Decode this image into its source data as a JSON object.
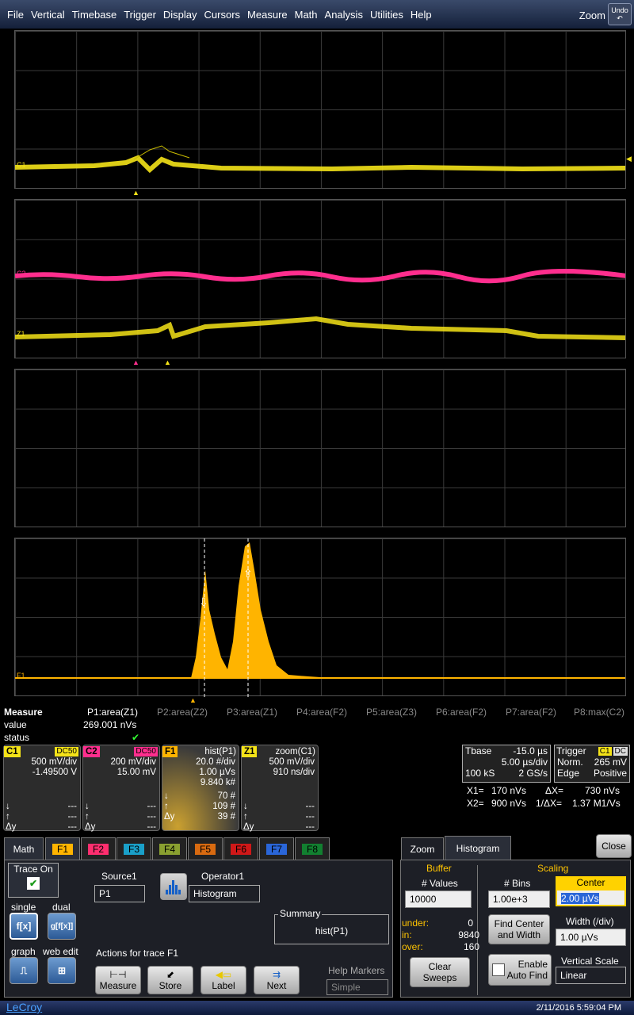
{
  "menu": {
    "items": [
      "File",
      "Vertical",
      "Timebase",
      "Trigger",
      "Display",
      "Cursors",
      "Measure",
      "Math",
      "Analysis",
      "Utilities",
      "Help"
    ],
    "zoom": "Zoom",
    "undo": "Undo"
  },
  "grid": {
    "c1": "C1",
    "c2": "C2",
    "z1": "Z1",
    "f1": "F1"
  },
  "measure": {
    "title": "Measure",
    "value_label": "value",
    "status_label": "status",
    "status_check": "✔",
    "params": [
      "P1:area(Z1)",
      "P2:area(Z2)",
      "P3:area(Z1)",
      "P4:area(F2)",
      "P5:area(Z3)",
      "P6:area(F2)",
      "P7:area(F2)",
      "P8:max(C2)"
    ],
    "p1_value": "269.001 nVs"
  },
  "channels": {
    "c1": {
      "name": "C1",
      "tag": "DC50",
      "l1": "500 mV/div",
      "l2": "-1.49500 V",
      "color": "#f4e318"
    },
    "c2": {
      "name": "C2",
      "tag": "DC50",
      "l1": "200 mV/div",
      "l2": "15.00 mV",
      "color": "#ff2e8e"
    },
    "f1": {
      "name": "F1",
      "op": "hist(P1)",
      "l1": "20.0 #/div",
      "l2": "1.00 µVs",
      "l3": "9.840 k#",
      "a1": "70 #",
      "a2": "109 #",
      "a3": "39 #",
      "color": "#ffb400"
    },
    "z1": {
      "name": "Z1",
      "op": "zoom(C1)",
      "l1": "500 mV/div",
      "l2": "910 ns/div",
      "color": "#f4e318"
    },
    "dash": "---",
    "dy": "Δy",
    "down": "↓",
    "up": "↑"
  },
  "timebase": {
    "title": "Tbase",
    "offset": "-15.0 µs",
    "div": "5.00 µs/div",
    "samples": "100 kS",
    "rate": "2 GS/s"
  },
  "trigger": {
    "title": "Trigger",
    "ch": "C1",
    "coupling": "DC",
    "mode": "Norm.",
    "level": "265 mV",
    "type": "Edge",
    "slope": "Positive"
  },
  "cursors": {
    "x1": "X1=",
    "x1v": "170 nVs",
    "dx": "ΔX=",
    "dxv": "730 nVs",
    "x2": "X2=",
    "x2v": "900 nVs",
    "idx": "1/ΔX=",
    "idxv": "1.37 M1/Vs"
  },
  "math_tabs": {
    "math": "Math",
    "tabs": [
      "F1",
      "F2",
      "F3",
      "F4",
      "F5",
      "F6",
      "F7",
      "F8"
    ]
  },
  "math_panel": {
    "trace_on": "Trace On",
    "single": "single",
    "dual": "dual",
    "fx": "f[x]",
    "gfx": "g[f[x]]",
    "graph": "graph",
    "webedit": "web edit",
    "source_label": "Source1",
    "source": "P1",
    "operator_label": "Operator1",
    "operator": "Histogram",
    "summary_label": "Summary",
    "summary": "hist(P1)",
    "actions": "Actions for trace F1",
    "measure_btn": "Measure",
    "store_btn": "Store",
    "label_btn": "Label",
    "next_btn": "Next",
    "help_markers": "Help Markers",
    "help_value": "Simple"
  },
  "hist_panel": {
    "zoom_tab": "Zoom",
    "hist_tab": "Histogram",
    "close": "Close",
    "buffer": "Buffer",
    "values_label": "# Values",
    "values": "10000",
    "under_l": "under:",
    "under": "0",
    "in_l": "in:",
    "in": "9840",
    "over_l": "over:",
    "over": "160",
    "clear": "Clear Sweeps",
    "scaling": "Scaling",
    "bins_label": "# Bins",
    "bins": "1.00e+3",
    "center_label": "Center",
    "center": "2.00 µVs",
    "find": "Find Center and Width",
    "width_label": "Width (/div)",
    "width": "1.00 µVs",
    "enable": "Enable Auto Find",
    "vscale_label": "Vertical Scale",
    "vscale": "Linear"
  },
  "footer": {
    "brand": "LeCroy",
    "time": "2/11/2016 5:59:04 PM"
  }
}
